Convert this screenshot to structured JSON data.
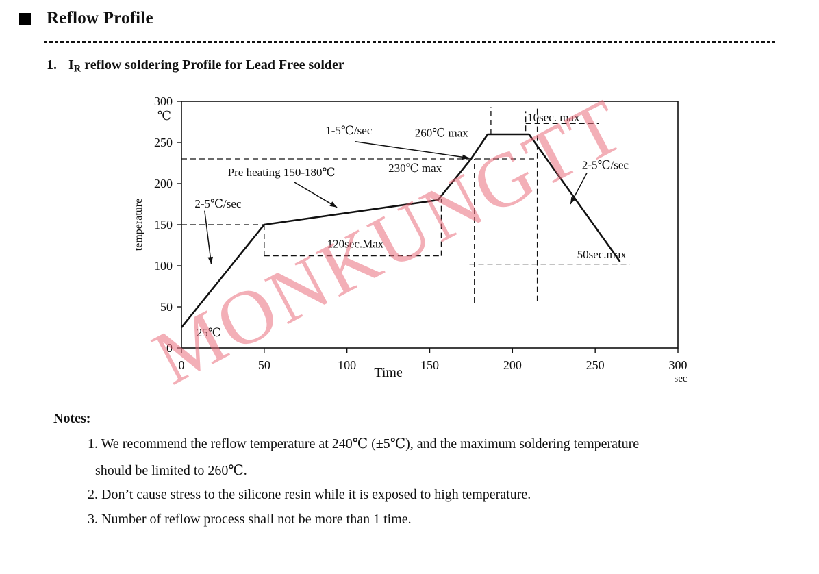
{
  "doc": {
    "title": "Reflow Profile"
  },
  "heading": {
    "num": "1.",
    "main": "I",
    "sub": "R",
    "rest": " reflow soldering Profile for Lead Free solder"
  },
  "watermark": "MONKUNGTT",
  "notes": {
    "label": "Notes:",
    "line1": "1. We recommend the reflow temperature at 240℃  (±5℃), and the maximum soldering temperature",
    "line1b": "should be limited to 260℃.",
    "line2": "2. Don’t cause stress to the silicone resin while it is exposed to high temperature.",
    "line3": "3. Number of reflow process shall not be more than 1 time."
  },
  "chart_data": {
    "type": "line",
    "title": "IR reflow soldering Profile for Lead Free solder",
    "xlabel": "Time",
    "x_unit": "sec",
    "ylabel": "temperature",
    "y_unit": "℃",
    "xlim": [
      0,
      300
    ],
    "ylim": [
      0,
      300
    ],
    "x_ticks": [
      0,
      50,
      100,
      150,
      200,
      250,
      300
    ],
    "y_ticks": [
      0,
      50,
      100,
      150,
      200,
      250,
      300
    ],
    "grid": false,
    "profile": [
      [
        0,
        25
      ],
      [
        50,
        150
      ],
      [
        155,
        180
      ],
      [
        175,
        230
      ],
      [
        185,
        260
      ],
      [
        210,
        260
      ],
      [
        265,
        105
      ]
    ],
    "dashed_lines": [
      [
        0,
        150,
        50,
        150
      ],
      [
        50,
        150,
        50,
        112
      ],
      [
        50,
        112,
        157,
        112
      ],
      [
        157,
        112,
        157,
        181
      ],
      [
        0,
        230,
        215,
        230
      ],
      [
        177,
        55,
        177,
        230
      ],
      [
        187,
        260,
        187,
        293
      ],
      [
        208,
        264,
        208,
        288
      ],
      [
        208,
        273,
        252,
        273
      ],
      [
        215,
        57,
        215,
        295
      ],
      [
        174,
        102,
        271,
        102
      ]
    ],
    "annotations": [
      {
        "label": "1-5℃/sec",
        "t": 87,
        "T": 260
      },
      {
        "label": "260℃  max",
        "t": 141,
        "T": 257
      },
      {
        "label": "230℃  max",
        "t": 125,
        "T": 214
      },
      {
        "label": "Pre heating  150-180℃",
        "t": 28,
        "T": 209
      },
      {
        "label": "2-5℃/sec",
        "t": 8,
        "T": 171
      },
      {
        "label": "120sec.Max",
        "t": 88,
        "T": 122
      },
      {
        "label": "10sec. max",
        "t": 209,
        "T": 276
      },
      {
        "label": "2-5℃/sec",
        "t": 242,
        "T": 218
      },
      {
        "label": "50sec.max",
        "t": 239,
        "T": 109
      },
      {
        "label": "25℃",
        "t": 9,
        "T": 14
      }
    ],
    "arrows": [
      {
        "from": [
          105,
          251
        ],
        "to": [
          174,
          231
        ]
      },
      {
        "from": [
          68,
          202
        ],
        "to": [
          94,
          171
        ]
      },
      {
        "from": [
          14,
          167
        ],
        "to": [
          18,
          102
        ]
      },
      {
        "from": [
          245,
          213
        ],
        "to": [
          235,
          175
        ]
      }
    ]
  }
}
